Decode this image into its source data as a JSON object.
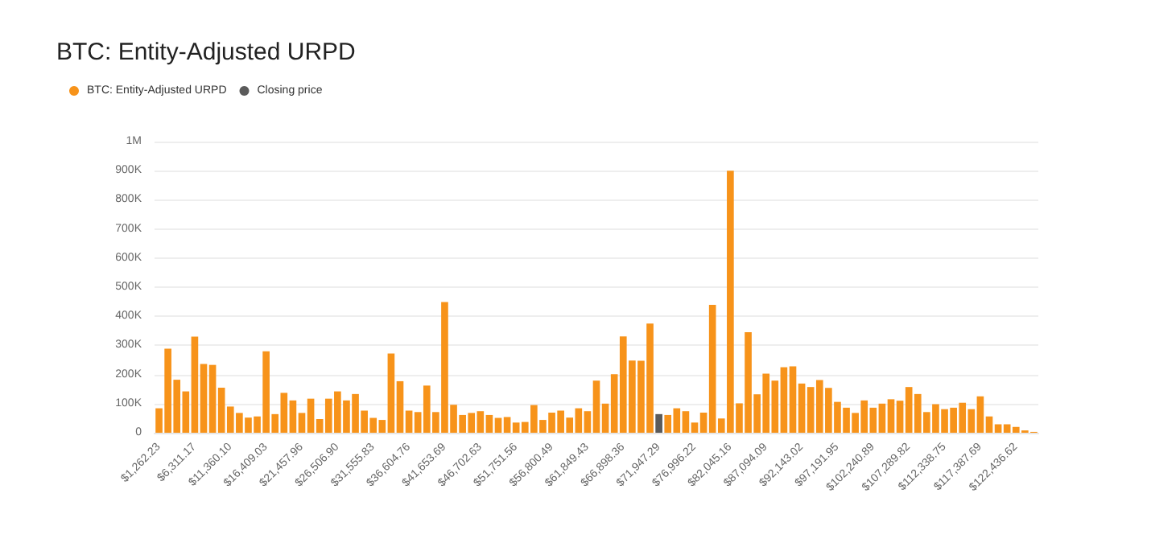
{
  "chart_data": {
    "type": "bar",
    "title": "BTC: Entity-Adjusted URPD",
    "stacked": true,
    "legend": "top left",
    "grid": "y",
    "categories": [
      "$1,262.23",
      null,
      null,
      null,
      "$6,311.17",
      null,
      null,
      null,
      "$11,360.10",
      null,
      null,
      null,
      "$16,409.03",
      null,
      null,
      null,
      "$21,457.96",
      null,
      null,
      null,
      "$26,506.90",
      null,
      null,
      null,
      "$31,555.83",
      null,
      null,
      null,
      "$36,604.76",
      null,
      null,
      null,
      "$41,653.69",
      null,
      null,
      null,
      "$46,702.63",
      null,
      null,
      null,
      "$51,751.56",
      null,
      null,
      null,
      "$56,800.49",
      null,
      null,
      null,
      "$61,849.43",
      null,
      null,
      null,
      "$66,898.36",
      null,
      null,
      null,
      "$71,947.29",
      null,
      null,
      null,
      "$76,996.22",
      null,
      null,
      null,
      "$82,045.16",
      null,
      null,
      null,
      "$87,094.09",
      null,
      null,
      null,
      "$92,143.02",
      null,
      null,
      null,
      "$97,191.95",
      null,
      null,
      null,
      "$102,240.89",
      null,
      null,
      null,
      "$107,289.82",
      null,
      null,
      null,
      "$112,338.75",
      null,
      null,
      null,
      "$117,387.69",
      null,
      null,
      null,
      "$122,436.62",
      null,
      null
    ],
    "series": [
      {
        "name": "BTC: Entity-Adjusted URPD",
        "color": "#f7931a",
        "values": [
          84000,
          289000,
          182000,
          142000,
          330000,
          236000,
          233000,
          155000,
          90000,
          68000,
          52000,
          56000,
          280000,
          64000,
          137000,
          111000,
          68000,
          117000,
          47000,
          117000,
          142000,
          111000,
          133000,
          76000,
          51000,
          44000,
          272000,
          177000,
          76000,
          71000,
          162000,
          71000,
          449000,
          96000,
          61000,
          68000,
          74000,
          61000,
          51000,
          54000,
          35000,
          37000,
          95000,
          44000,
          69000,
          76000,
          52000,
          84000,
          74000,
          179000,
          100000,
          201000,
          331000,
          248000,
          247000,
          375000,
          null,
          61000,
          84000,
          74000,
          35000,
          69000,
          439000,
          49000,
          900000,
          101000,
          345000,
          132000,
          203000,
          179000,
          225000,
          228000,
          169000,
          157000,
          181000,
          154000,
          106000,
          86000,
          68000,
          111000,
          86000,
          100000,
          115000,
          110000,
          157000,
          133000,
          71000,
          98000,
          81000,
          86000,
          103000,
          81000,
          125000,
          56000,
          29000,
          29000,
          20000,
          8000,
          3000
        ]
      },
      {
        "name": "Closing price",
        "color": "#5b5b5b",
        "values": [
          null,
          null,
          null,
          null,
          null,
          null,
          null,
          null,
          null,
          null,
          null,
          null,
          null,
          null,
          null,
          null,
          null,
          null,
          null,
          null,
          null,
          null,
          null,
          null,
          null,
          null,
          null,
          null,
          null,
          null,
          null,
          null,
          null,
          null,
          null,
          null,
          null,
          null,
          null,
          null,
          null,
          null,
          null,
          null,
          null,
          null,
          null,
          null,
          null,
          null,
          null,
          null,
          null,
          null,
          null,
          null,
          64000,
          null,
          null,
          null,
          null,
          null,
          null,
          null,
          null,
          null,
          null,
          null,
          null,
          null,
          null,
          null,
          null,
          null,
          null,
          null,
          null,
          null,
          null,
          null,
          null,
          null,
          null,
          null,
          null,
          null,
          null,
          null,
          null,
          null,
          null,
          null,
          null,
          null,
          null,
          null,
          null,
          null,
          null
        ]
      }
    ],
    "ylim": [
      0,
      1000000
    ],
    "yticks": [
      {
        "value": 0,
        "label": "0"
      },
      {
        "value": 100000,
        "label": "100K"
      },
      {
        "value": 200000,
        "label": "200K"
      },
      {
        "value": 300000,
        "label": "300K"
      },
      {
        "value": 400000,
        "label": "400K"
      },
      {
        "value": 500000,
        "label": "500K"
      },
      {
        "value": 600000,
        "label": "600K"
      },
      {
        "value": 700000,
        "label": "700K"
      },
      {
        "value": 800000,
        "label": "800K"
      },
      {
        "value": 900000,
        "label": "900K"
      },
      {
        "value": 1000000,
        "label": "1M"
      }
    ]
  }
}
